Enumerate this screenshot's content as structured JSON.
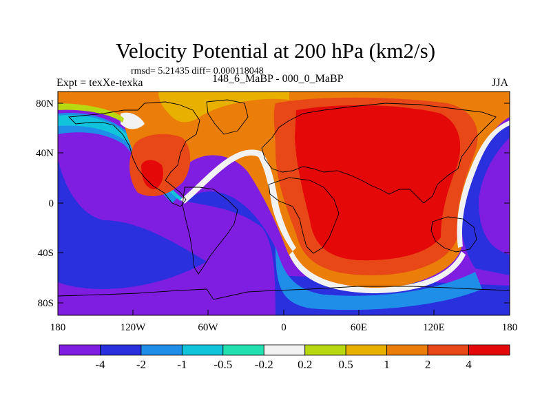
{
  "title": "Velocity Potential at 200 hPa (km2/s)",
  "stats": "rmsd= 5.21435 diff= 0.000118048",
  "left_label": "Expt = texXe-texka",
  "center_label": "148_6_MaBP - 000_0_MaBP",
  "right_label": "JJA",
  "lat_labels": [
    "80N",
    "40N",
    "0",
    "40S",
    "80S"
  ],
  "lon_labels": [
    "180",
    "120W",
    "60W",
    "0",
    "60E",
    "120E",
    "180"
  ],
  "colorbar": {
    "colors": [
      "#7f1ee0",
      "#2a30dd",
      "#1f8ee8",
      "#12c3dc",
      "#22e0b0",
      "#f2f2f2",
      "#b8d810",
      "#e8b000",
      "#ea7e08",
      "#e84818",
      "#e40808"
    ],
    "labels": [
      "-4",
      "-2",
      "-1",
      "-0.5",
      "-0.2",
      "0.2",
      "0.5",
      "1",
      "2",
      "4"
    ]
  }
}
